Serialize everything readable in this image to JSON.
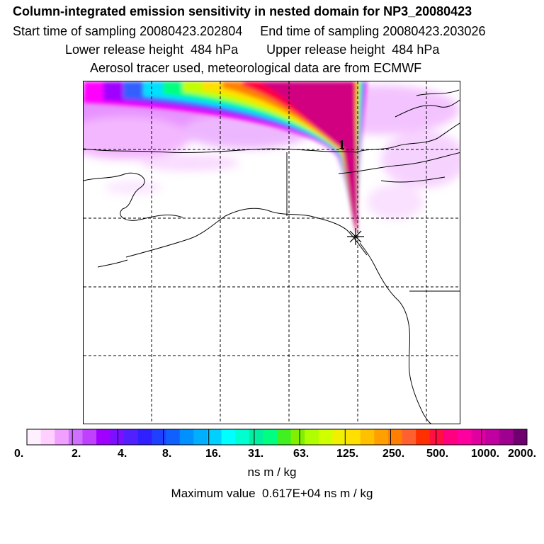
{
  "header": {
    "title": "Column-integrated emission sensitivity in nested domain for NP3_20080423",
    "line2": "Start time of sampling 20080423.202804     End time of sampling 20080423.203026",
    "line3": "Lower release height  484 hPa        Upper release height  484 hPa",
    "line4": "Aerosol tracer used, meteorological data are from ECMWF"
  },
  "map": {
    "marker_label": "1",
    "plume_colors": [
      "#ff00ff",
      "#a000ff",
      "#3060ff",
      "#00e0ff",
      "#00ff80",
      "#c0ff00",
      "#ffe000",
      "#ff8000",
      "#ff0040",
      "#d00080"
    ]
  },
  "colorbar": {
    "tick_labels": [
      "0.",
      "2.",
      "4.",
      "8.",
      "16.",
      "31.",
      "63.",
      "125.",
      "250.",
      "500.",
      "1000.",
      "2000."
    ],
    "colors": [
      "#fff0ff",
      "#ffd0ff",
      "#f0a0ff",
      "#d070ff",
      "#c040ff",
      "#a000ff",
      "#7a10ff",
      "#5020ff",
      "#3020ff",
      "#2040ff",
      "#1060ff",
      "#0090ff",
      "#00b0ff",
      "#00d0ff",
      "#00ffff",
      "#00ffd0",
      "#00f0a0",
      "#00ff80",
      "#40f020",
      "#80f000",
      "#b0ff00",
      "#d0ff00",
      "#f0f000",
      "#ffe000",
      "#ffc000",
      "#ffa000",
      "#ff8000",
      "#ff6030",
      "#ff3000",
      "#ff1040",
      "#ff0080",
      "#ff00a0",
      "#e000a0",
      "#c000a0",
      "#a00090",
      "#700070"
    ],
    "units": "ns m / kg"
  },
  "footer": {
    "max_value": "Maximum value  0.617E+04 ns m / kg"
  }
}
